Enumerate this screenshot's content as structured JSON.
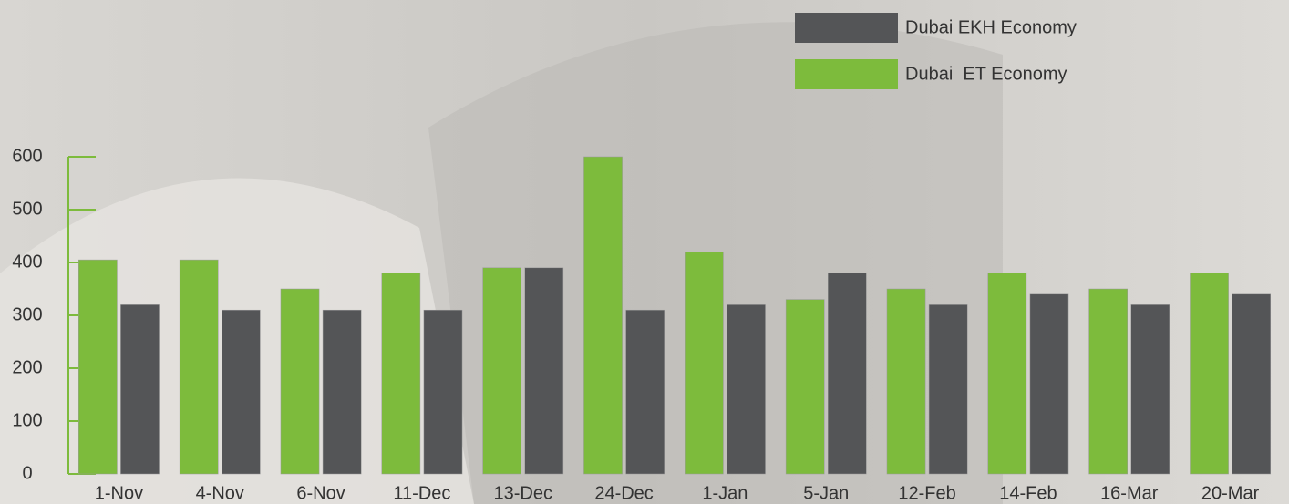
{
  "chart_data": {
    "type": "bar",
    "categories": [
      "1-Nov",
      "4-Nov",
      "6-Nov",
      "11-Dec",
      "13-Dec",
      "24-Dec",
      "1-Jan",
      "5-Jan",
      "12-Feb",
      "14-Feb",
      "16-Mar",
      "20-Mar"
    ],
    "series": [
      {
        "name": "Dubai EKH Economy",
        "color": "#545557",
        "values": [
          320,
          310,
          310,
          310,
          390,
          310,
          320,
          380,
          320,
          340,
          320,
          340
        ]
      },
      {
        "name": "Dubai  ET Economy",
        "color": "#7dbb3c",
        "values": [
          405,
          405,
          350,
          380,
          390,
          600,
          420,
          330,
          350,
          380,
          350,
          380
        ]
      }
    ],
    "ylim": [
      0,
      600
    ],
    "yticks": [
      0,
      100,
      200,
      300,
      400,
      500,
      600
    ],
    "axis_color": "#7dbb3c"
  }
}
